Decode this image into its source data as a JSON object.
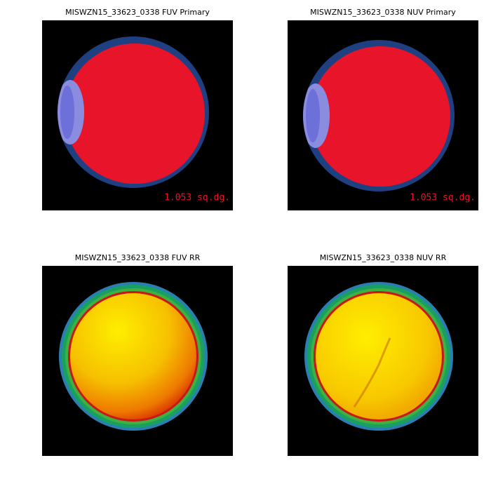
{
  "panels": [
    {
      "title": "MISWZN15_33623_0338 FUV Primary",
      "area_label": "1.053 sq.dg."
    },
    {
      "title": "MISWZN15_33623_0338 NUV Primary",
      "area_label": "1.053 sq.dg."
    },
    {
      "title": "MISWZN15_33623_0338 FUV RR"
    },
    {
      "title": "MISWZN15_33623_0338 NUV RR"
    }
  ]
}
